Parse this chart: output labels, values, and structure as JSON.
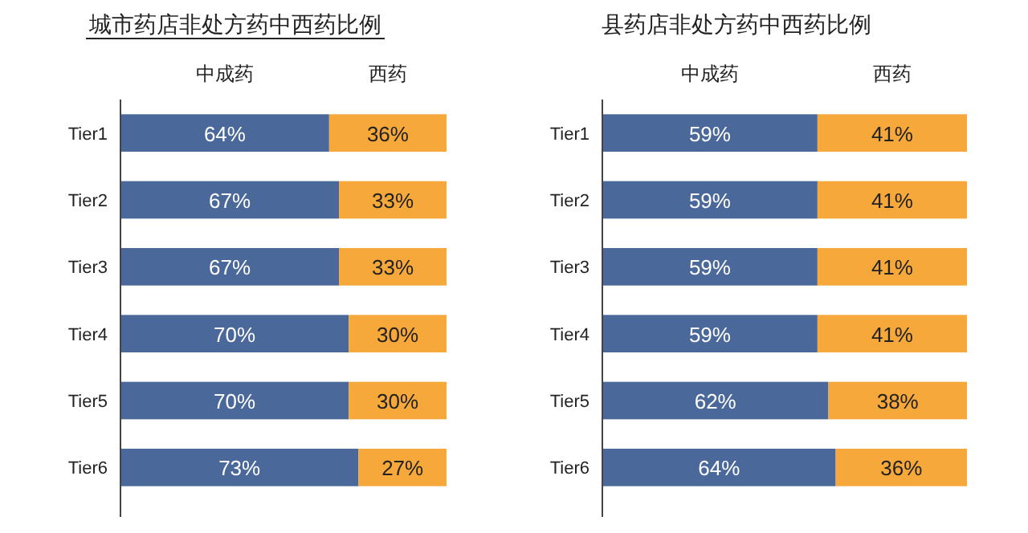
{
  "chart_data": [
    {
      "type": "bar",
      "title": "城市药店非处方药中西药比例",
      "orientation": "horizontal",
      "stacked": true,
      "data_labels": true,
      "legend": "top",
      "categories": [
        "Tier1",
        "Tier2",
        "Tier3",
        "Tier4",
        "Tier5",
        "Tier6"
      ],
      "series": [
        {
          "name": "中成药",
          "color": "#4a6899",
          "values": [
            64,
            67,
            67,
            70,
            70,
            73
          ],
          "value_labels": [
            "64%",
            "67%",
            "67%",
            "70%",
            "70%",
            "73%"
          ]
        },
        {
          "name": "西药",
          "color": "#f7a83a",
          "values": [
            36,
            33,
            33,
            30,
            30,
            27
          ],
          "value_labels": [
            "36%",
            "33%",
            "33%",
            "30%",
            "30%",
            "27%"
          ]
        }
      ]
    },
    {
      "type": "bar",
      "title": "县药店非处方药中西药比例",
      "orientation": "horizontal",
      "stacked": true,
      "data_labels": true,
      "legend": "top",
      "categories": [
        "Tier1",
        "Tier2",
        "Tier3",
        "Tier4",
        "Tier5",
        "Tier6"
      ],
      "series": [
        {
          "name": "中成药",
          "color": "#4a6899",
          "values": [
            59,
            59,
            59,
            59,
            62,
            64
          ],
          "value_labels": [
            "59%",
            "59%",
            "59%",
            "59%",
            "62%",
            "64%"
          ]
        },
        {
          "name": "西药",
          "color": "#f7a83a",
          "values": [
            41,
            41,
            41,
            41,
            38,
            36
          ],
          "value_labels": [
            "41%",
            "41%",
            "41%",
            "41%",
            "38%",
            "36%"
          ]
        }
      ]
    }
  ]
}
